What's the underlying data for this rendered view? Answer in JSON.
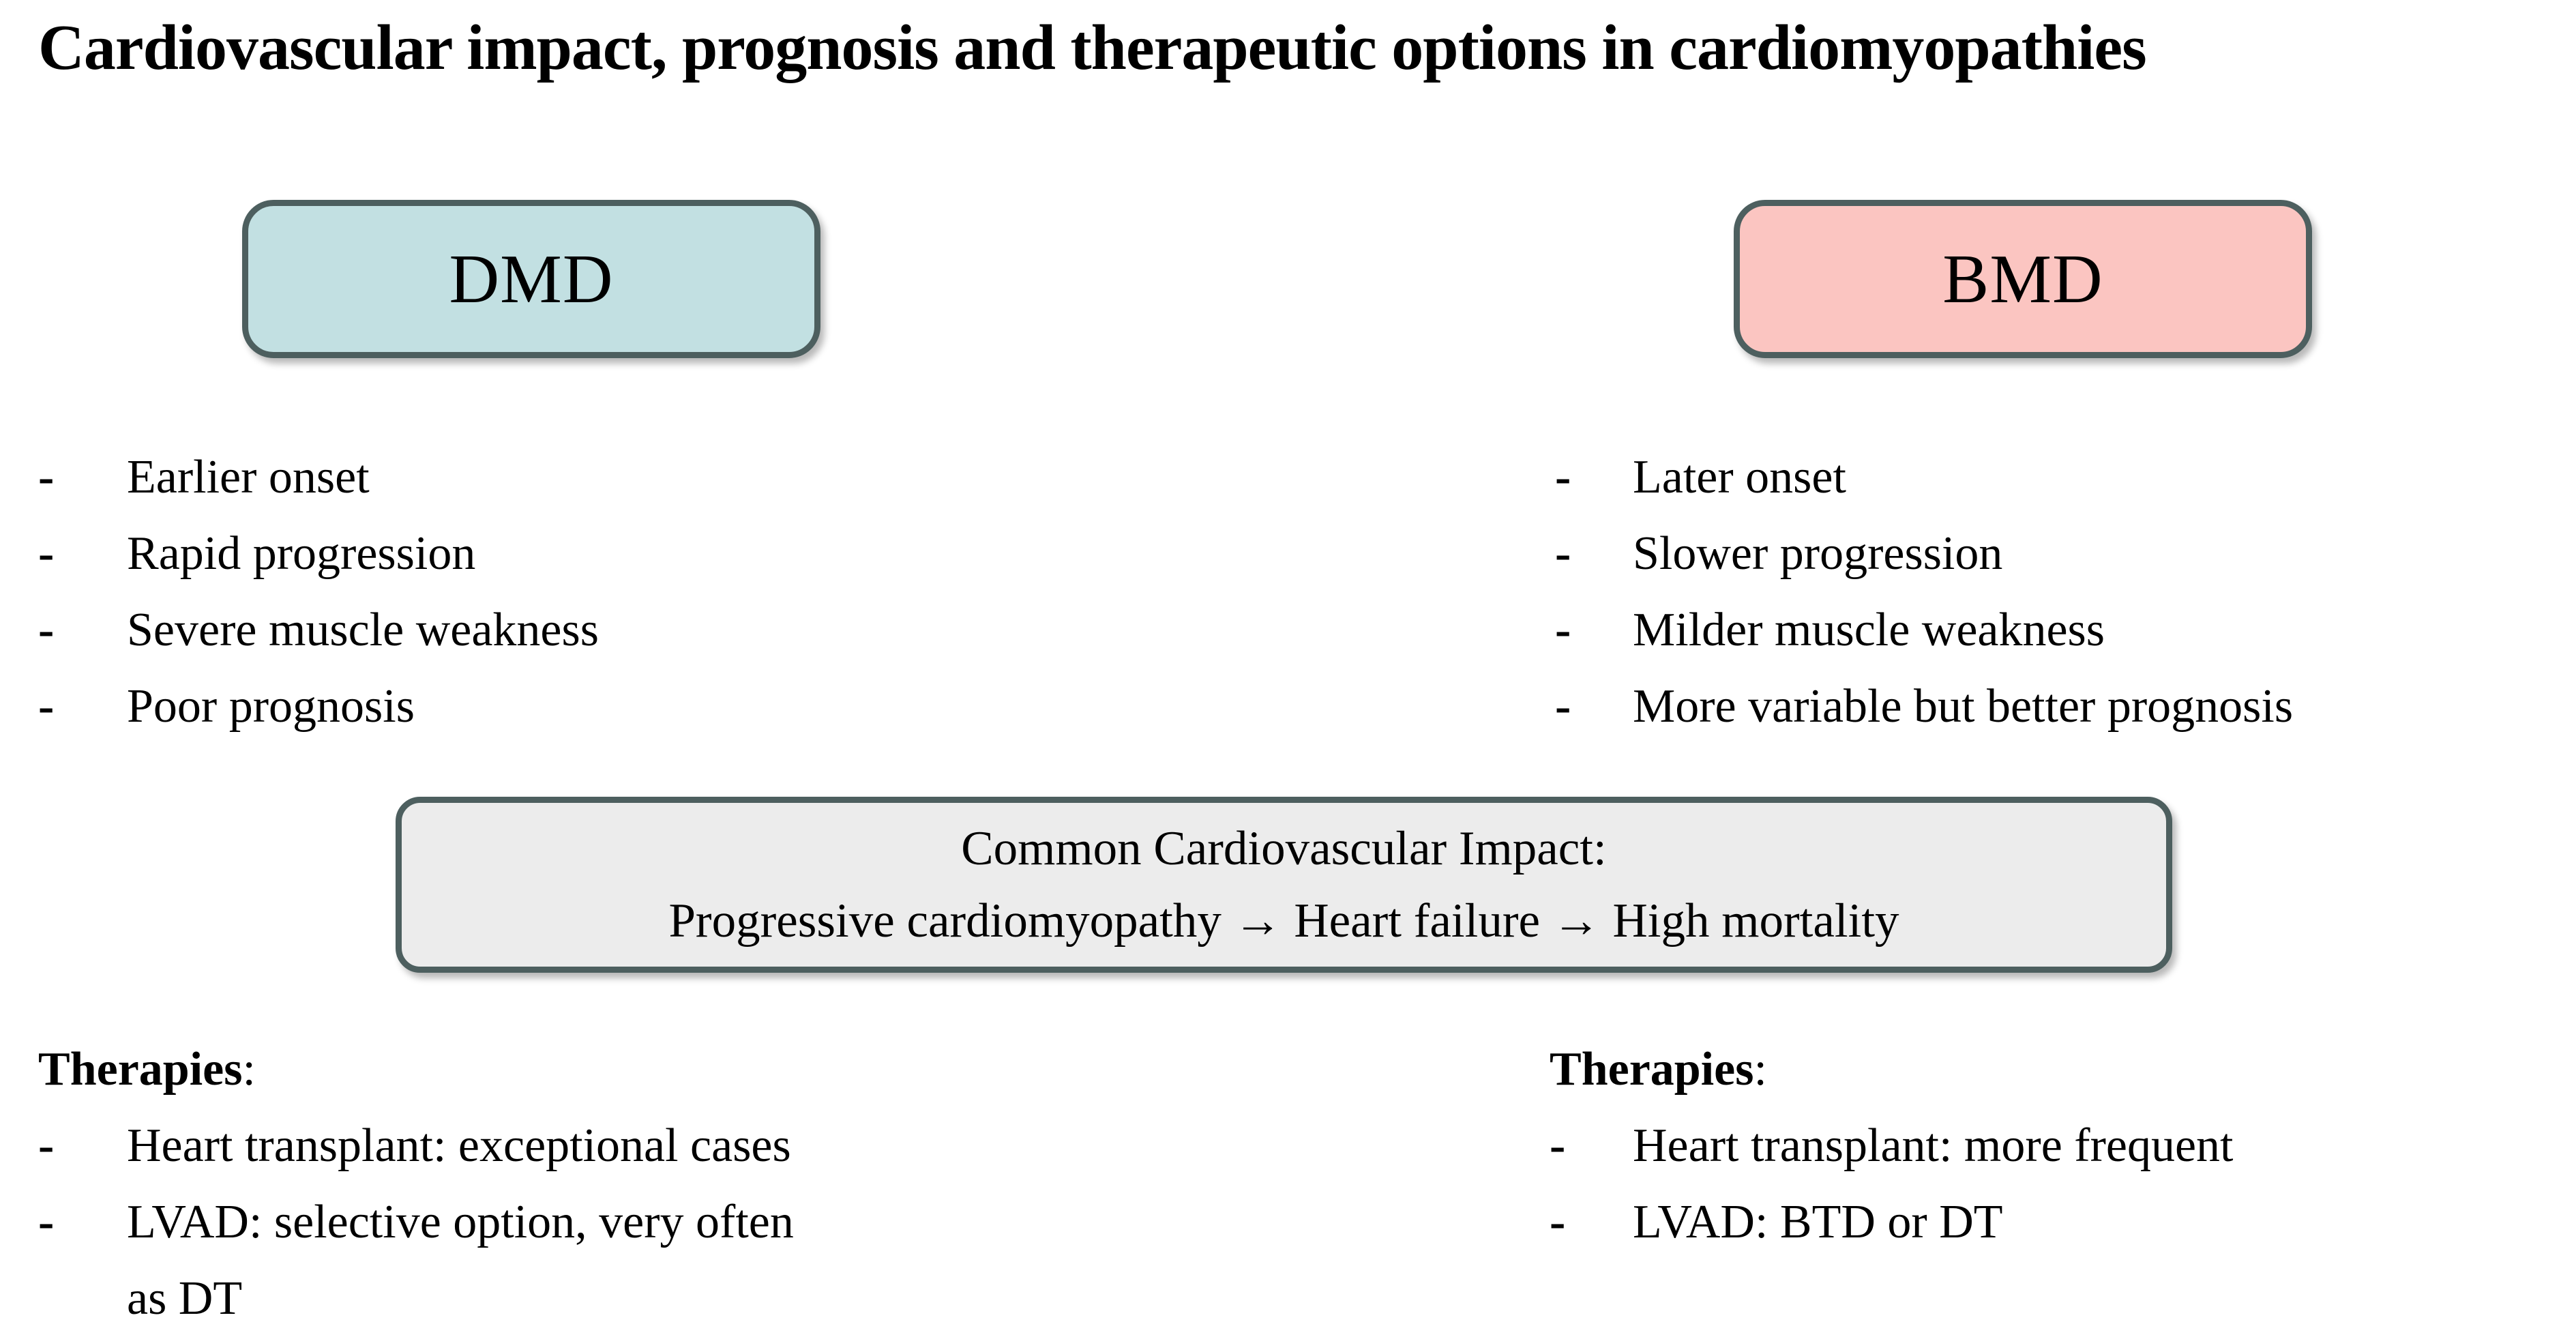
{
  "title": "Cardiovascular impact, prognosis and therapeutic options in cardiomyopathies",
  "bullet_char": "-",
  "colors": {
    "border": "#4d5f5f",
    "dmd_fill": "#c2e0e2",
    "bmd_fill": "#fbc5c1",
    "impact_fill": "#ececec"
  },
  "dmd": {
    "label": "DMD",
    "features": [
      "Earlier onset",
      "Rapid progression",
      "Severe muscle weakness",
      "Poor prognosis"
    ],
    "therapies_heading": "Therapies",
    "therapies_colon": ":",
    "therapies": [
      "Heart transplant: exceptional cases",
      "LVAD: selective option, very often\nas DT"
    ]
  },
  "bmd": {
    "label": "BMD",
    "features": [
      "Later onset",
      "Slower progression",
      "Milder muscle weakness",
      "More variable but better prognosis"
    ],
    "therapies_heading": "Therapies",
    "therapies_colon": ":",
    "therapies": [
      "Heart transplant: more frequent",
      "LVAD: BTD or DT"
    ]
  },
  "impact_box": {
    "line1": "Common Cardiovascular Impact:",
    "line2": "Progressive cardiomyopathy → Heart failure → High mortality"
  }
}
